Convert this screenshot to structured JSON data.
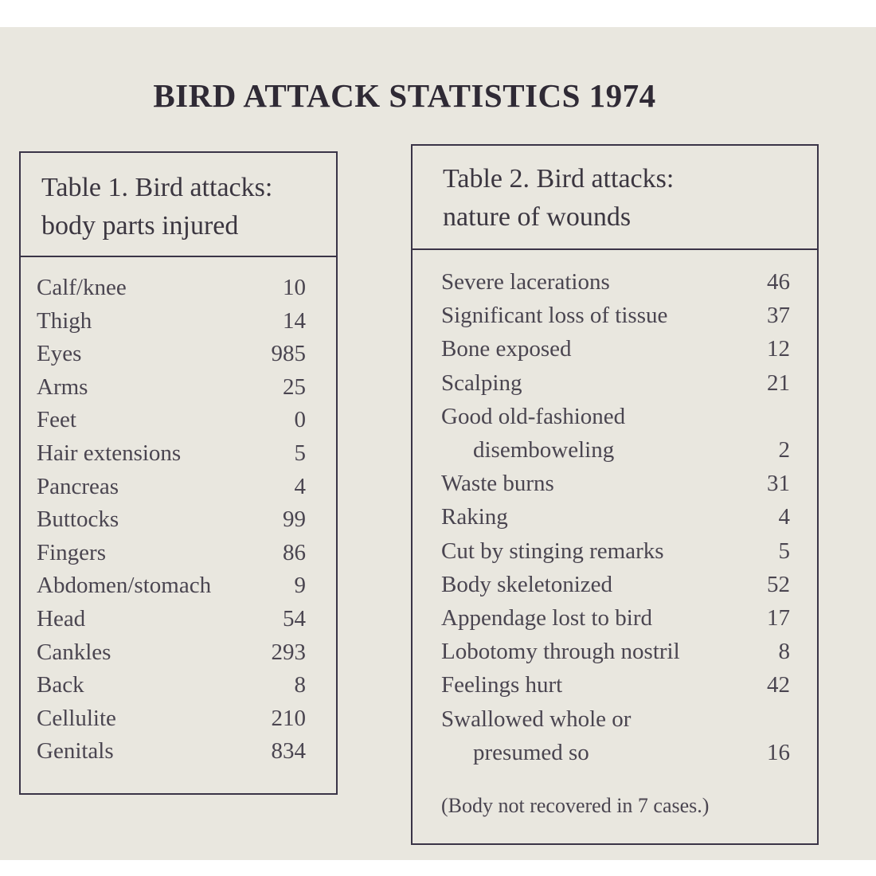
{
  "page": {
    "title": "BIRD ATTACK STATISTICS 1974"
  },
  "table1": {
    "heading_line1": "Table 1. Bird attacks:",
    "heading_line2": "body parts injured",
    "rows": [
      {
        "label": "Calf/knee",
        "value": "10"
      },
      {
        "label": "Thigh",
        "value": "14"
      },
      {
        "label": "Eyes",
        "value": "985"
      },
      {
        "label": "Arms",
        "value": "25"
      },
      {
        "label": "Feet",
        "value": "0"
      },
      {
        "label": "Hair extensions",
        "value": "5"
      },
      {
        "label": "Pancreas",
        "value": "4"
      },
      {
        "label": "Buttocks",
        "value": "99"
      },
      {
        "label": "Fingers",
        "value": "86"
      },
      {
        "label": "Abdomen/stomach",
        "value": "9"
      },
      {
        "label": "Head",
        "value": "54"
      },
      {
        "label": "Cankles",
        "value": "293"
      },
      {
        "label": "Back",
        "value": "8"
      },
      {
        "label": "Cellulite",
        "value": "210"
      },
      {
        "label": "Genitals",
        "value": "834"
      }
    ]
  },
  "table2": {
    "heading_line1": "Table 2. Bird attacks:",
    "heading_line2": "nature of wounds",
    "rows": [
      {
        "label": "Severe lacerations",
        "value": "46"
      },
      {
        "label": "Significant loss of tissue",
        "value": "37"
      },
      {
        "label": "Bone exposed",
        "value": "12"
      },
      {
        "label": "Scalping",
        "value": "21"
      },
      {
        "label": "Good old-fashioned",
        "value": ""
      },
      {
        "label": "disemboweling",
        "value": "2",
        "indent": true
      },
      {
        "label": "Waste burns",
        "value": "31"
      },
      {
        "label": "Raking",
        "value": "4"
      },
      {
        "label": "Cut by stinging remarks",
        "value": "5"
      },
      {
        "label": "Body skeletonized",
        "value": "52"
      },
      {
        "label": "Appendage lost to bird",
        "value": "17"
      },
      {
        "label": "Lobotomy through nostril",
        "value": "8"
      },
      {
        "label": "Feelings hurt",
        "value": "42"
      },
      {
        "label": "Swallowed whole or",
        "value": ""
      },
      {
        "label": "presumed so",
        "value": "16",
        "indent": true
      }
    ],
    "footnote": "(Body not recovered in 7 cases.)"
  }
}
